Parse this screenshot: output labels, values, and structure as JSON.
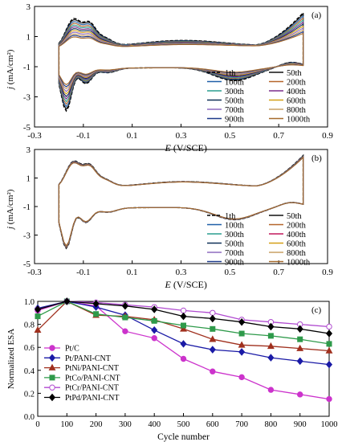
{
  "chart_data": [
    {
      "type": "line",
      "panel_label": "(a)",
      "xlabel_var": "E",
      "xlabel_unit": "(V/SCE)",
      "ylabel_var": "j",
      "ylabel_unit": "(mA/cm²)",
      "xlim": [
        -0.3,
        0.9
      ],
      "ylim": [
        -5,
        3
      ],
      "x_ticks": [
        "-0.3",
        "-0.1",
        "0.1",
        "0.3",
        "0.5",
        "0.7",
        "0.9"
      ],
      "y_ticks": [
        "3",
        "1",
        "-1",
        "-3",
        "-5"
      ],
      "grid": false,
      "legend_position": "bottom-right",
      "series": [
        {
          "name": "1th",
          "color": "#000000",
          "dash": true,
          "s": 1.0
        },
        {
          "name": "50th",
          "color": "#111111",
          "s": 0.96
        },
        {
          "name": "100th",
          "color": "#1f5fa8",
          "s": 0.9
        },
        {
          "name": "200th",
          "color": "#b5652a",
          "s": 0.84
        },
        {
          "name": "300th",
          "color": "#2a9d8f",
          "s": 0.78
        },
        {
          "name": "400th",
          "color": "#7b2d8b",
          "s": 0.72
        },
        {
          "name": "500th",
          "color": "#0f3057",
          "s": 0.66
        },
        {
          "name": "600th",
          "color": "#d4a017",
          "s": 0.6
        },
        {
          "name": "700th",
          "color": "#8e6bbf",
          "s": 0.54
        },
        {
          "name": "800th",
          "color": "#c8a165",
          "s": 0.48
        },
        {
          "name": "900th",
          "color": "#1e3a8a",
          "s": 0.43
        },
        {
          "name": "1000th",
          "color": "#a66a2c",
          "s": 0.38
        }
      ]
    },
    {
      "type": "line",
      "panel_label": "(b)",
      "xlabel_var": "E",
      "xlabel_unit": "(V/SCE)",
      "ylabel_var": "j",
      "ylabel_unit": "(mA/cm²)",
      "xlim": [
        -0.3,
        0.9
      ],
      "ylim": [
        -5,
        3
      ],
      "x_ticks": [
        "-0.3",
        "-0.1",
        "0.1",
        "0.3",
        "0.5",
        "0.7",
        "0.9"
      ],
      "y_ticks": [
        "3",
        "1",
        "-1",
        "-3",
        "-5"
      ],
      "grid": false,
      "legend_position": "bottom-right",
      "series": [
        {
          "name": "1th",
          "color": "#000000",
          "dash": true,
          "s": 1.0
        },
        {
          "name": "50th",
          "color": "#111111",
          "s": 0.99
        },
        {
          "name": "100th",
          "color": "#1f5fa8",
          "s": 0.98
        },
        {
          "name": "200th",
          "color": "#b5652a",
          "s": 0.975
        },
        {
          "name": "300th",
          "color": "#2a9d8f",
          "s": 0.97
        },
        {
          "name": "400th",
          "color": "#c2185b",
          "s": 0.965
        },
        {
          "name": "500th",
          "color": "#0f3057",
          "s": 0.96
        },
        {
          "name": "600th",
          "color": "#d4a017",
          "s": 0.955
        },
        {
          "name": "700th",
          "color": "#8e6bbf",
          "s": 0.95
        },
        {
          "name": "800th",
          "color": "#c8a165",
          "s": 0.945
        },
        {
          "name": "900th",
          "color": "#1e3a8a",
          "s": 0.94
        },
        {
          "name": "1000th",
          "color": "#a66a2c",
          "s": 0.935
        }
      ]
    },
    {
      "type": "line",
      "panel_label": "(c)",
      "xlabel": "Cycle number",
      "ylabel": "Normalized ESA",
      "xlim": [
        0,
        1000
      ],
      "ylim": [
        0,
        1.0
      ],
      "x_ticks": [
        "0",
        "100",
        "200",
        "300",
        "400",
        "500",
        "600",
        "700",
        "800",
        "900",
        "1000"
      ],
      "y_ticks": [
        "1.0",
        "0.8",
        "0.6",
        "0.4",
        "0.2",
        "0.0"
      ],
      "grid": false,
      "legend_position": "bottom-left",
      "x": [
        0,
        100,
        200,
        300,
        400,
        500,
        600,
        700,
        800,
        900,
        1000
      ],
      "series": [
        {
          "name": "Pt/C",
          "color": "#cc33cc",
          "marker": "circle",
          "filled": true,
          "values": [
            0.92,
            1.0,
            0.96,
            0.74,
            0.68,
            0.5,
            0.39,
            0.34,
            0.23,
            0.19,
            0.15
          ]
        },
        {
          "name": "Pt/PANI-CNT",
          "color": "#1a1aa6",
          "marker": "diamond",
          "filled": true,
          "values": [
            0.94,
            1.0,
            0.95,
            0.88,
            0.75,
            0.63,
            0.58,
            0.56,
            0.51,
            0.48,
            0.45
          ]
        },
        {
          "name": "PtNi/PANI-CNT",
          "color": "#a0301e",
          "marker": "triangle",
          "filled": true,
          "values": [
            0.75,
            1.0,
            0.88,
            0.87,
            0.84,
            0.76,
            0.67,
            0.62,
            0.61,
            0.59,
            0.57
          ]
        },
        {
          "name": "PtCo/PANI-CNT",
          "color": "#2e9a4a",
          "marker": "square",
          "filled": true,
          "values": [
            0.87,
            1.0,
            0.89,
            0.86,
            0.83,
            0.79,
            0.76,
            0.72,
            0.7,
            0.67,
            0.63
          ]
        },
        {
          "name": "PtCr/PANI-CNT",
          "color": "#b04ad0",
          "marker": "circle",
          "filled": false,
          "values": [
            0.93,
            1.0,
            0.99,
            0.97,
            0.95,
            0.92,
            0.9,
            0.84,
            0.82,
            0.8,
            0.78
          ]
        },
        {
          "name": "PtPd/PANI-CNT",
          "color": "#000000",
          "marker": "diamond",
          "filled": true,
          "values": [
            0.93,
            1.0,
            0.98,
            0.96,
            0.93,
            0.87,
            0.85,
            0.82,
            0.78,
            0.76,
            0.72
          ]
        }
      ]
    }
  ]
}
